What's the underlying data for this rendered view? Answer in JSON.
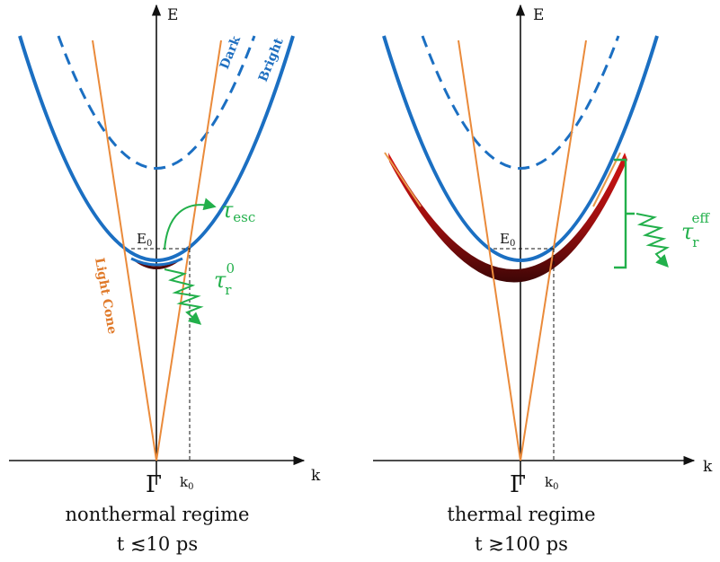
{
  "colors": {
    "bright_band": "#1b6fc2",
    "dark_band": "#1b6fc2",
    "light_cone": "#ea8a3a",
    "decay_arrow": "#22b04b",
    "population_dark": "#5a0b0b",
    "population_light": "#d41414",
    "axes": "#111111"
  },
  "left_panel": {
    "energy_axis_label": "E",
    "momentum_axis_label": "k",
    "gamma_label": "Γ",
    "k0_label": "k",
    "k0_sub": "0",
    "e0_label": "E",
    "e0_sub": "0",
    "dark_label": "Dark",
    "bright_label": "Bright",
    "light_cone_label": "Light Cone",
    "tau_esc": "τ",
    "tau_esc_sub": "esc",
    "tau_r": "τ",
    "tau_r_sub": "r",
    "tau_r_sup": "0",
    "regime_label": "nonthermal regime",
    "time_label": "t ≲10 ps"
  },
  "right_panel": {
    "energy_axis_label": "E",
    "momentum_axis_label": "k",
    "gamma_label": "Γ",
    "k0_label": "k",
    "k0_sub": "0",
    "e0_label": "E",
    "e0_sub": "0",
    "tau_r": "τ",
    "tau_r_sub": "r",
    "tau_r_sup": "eff",
    "regime_label": "thermal regime",
    "time_label": "t ≳100 ps"
  }
}
